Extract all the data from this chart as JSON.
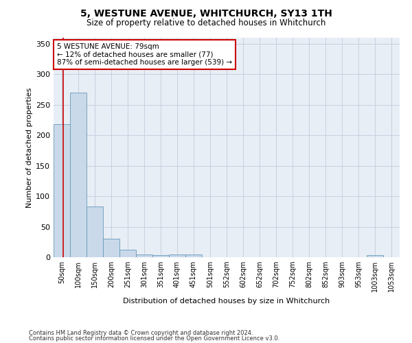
{
  "title": "5, WESTUNE AVENUE, WHITCHURCH, SY13 1TH",
  "subtitle": "Size of property relative to detached houses in Whitchurch",
  "xlabel": "Distribution of detached houses by size in Whitchurch",
  "ylabel": "Number of detached properties",
  "bar_labels": [
    "50sqm",
    "100sqm",
    "150sqm",
    "200sqm",
    "251sqm",
    "301sqm",
    "351sqm",
    "401sqm",
    "451sqm",
    "501sqm",
    "552sqm",
    "602sqm",
    "652sqm",
    "702sqm",
    "752sqm",
    "802sqm",
    "852sqm",
    "903sqm",
    "953sqm",
    "1003sqm",
    "1053sqm"
  ],
  "bar_values": [
    218,
    270,
    83,
    30,
    12,
    5,
    3,
    4,
    4,
    0,
    0,
    0,
    0,
    0,
    0,
    0,
    0,
    0,
    0,
    3,
    0
  ],
  "bar_color": "#c9d9e9",
  "bar_edge_color": "#6699bb",
  "annotation_text": "5 WESTUNE AVENUE: 79sqm\n← 12% of detached houses are smaller (77)\n87% of semi-detached houses are larger (539) →",
  "annotation_box_color": "#ffffff",
  "annotation_border_color": "#cc0000",
  "ylim": [
    0,
    360
  ],
  "yticks": [
    0,
    50,
    100,
    150,
    200,
    250,
    300,
    350
  ],
  "grid_color": "#c5d0e0",
  "background_color": "#e8eef5",
  "footer_line1": "Contains HM Land Registry data © Crown copyright and database right 2024.",
  "footer_line2": "Contains public sector information licensed under the Open Government Licence v3.0."
}
